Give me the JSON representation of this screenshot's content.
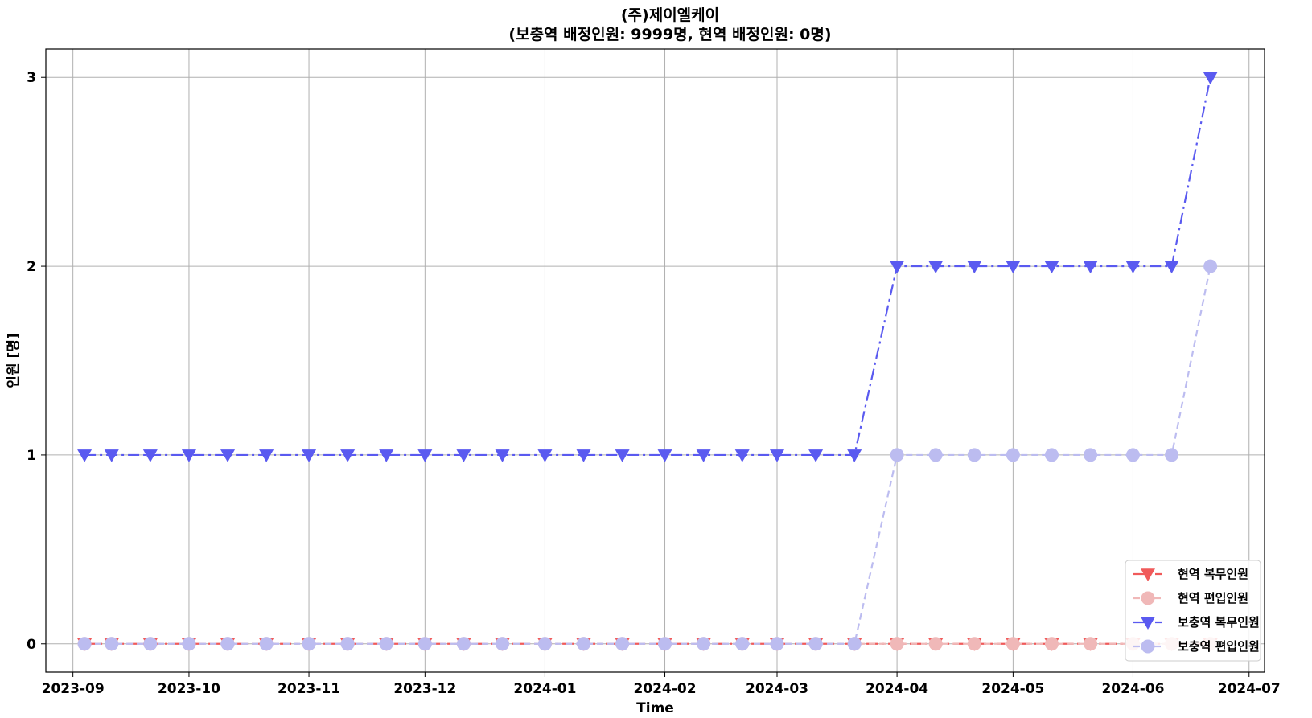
{
  "chart_data": {
    "type": "line",
    "title": "(주)제이엘케이",
    "subtitle": "(보충역  배정인원:  9999명,  현역  배정인원:  0명)",
    "xlabel": "Time",
    "ylabel": "인원 [명]",
    "xlim": [
      "2023-08-25",
      "2024-07-05"
    ],
    "ylim": [
      -0.15,
      3.15
    ],
    "x_ticks": [
      "2023-09",
      "2023-10",
      "2023-11",
      "2023-12",
      "2024-01",
      "2024-02",
      "2024-03",
      "2024-04",
      "2024-05",
      "2024-06",
      "2024-07"
    ],
    "y_ticks": [
      0,
      1,
      2,
      3
    ],
    "grid": true,
    "legend_position": "bottom-right",
    "x": [
      "2023-09-04",
      "2023-09-11",
      "2023-09-21",
      "2023-10-01",
      "2023-10-11",
      "2023-10-21",
      "2023-11-01",
      "2023-11-11",
      "2023-11-21",
      "2023-12-01",
      "2023-12-11",
      "2023-12-21",
      "2024-01-01",
      "2024-01-11",
      "2024-01-21",
      "2024-02-01",
      "2024-02-11",
      "2024-02-21",
      "2024-03-01",
      "2024-03-11",
      "2024-03-21",
      "2024-04-01",
      "2024-04-11",
      "2024-04-21",
      "2024-05-01",
      "2024-05-11",
      "2024-05-21",
      "2024-06-01",
      "2024-06-11",
      "2024-06-21"
    ],
    "series": [
      {
        "name": "현역  복무인원",
        "color": "#f05a5a",
        "marker": "triangle-down",
        "line_style": "dash-dot",
        "values": [
          0,
          0,
          0,
          0,
          0,
          0,
          0,
          0,
          0,
          0,
          0,
          0,
          0,
          0,
          0,
          0,
          0,
          0,
          0,
          0,
          0,
          0,
          0,
          0,
          0,
          0,
          0,
          0,
          0,
          0
        ]
      },
      {
        "name": "현역  편입인원",
        "color": "#f0b8b8",
        "marker": "circle",
        "line_style": "dashed",
        "values": [
          0,
          0,
          0,
          0,
          0,
          0,
          0,
          0,
          0,
          0,
          0,
          0,
          0,
          0,
          0,
          0,
          0,
          0,
          0,
          0,
          0,
          0,
          0,
          0,
          0,
          0,
          0,
          0,
          0,
          0
        ]
      },
      {
        "name": "보충역  복무인원",
        "color": "#5a5af0",
        "marker": "triangle-down",
        "line_style": "dash-dot",
        "values": [
          1,
          1,
          1,
          1,
          1,
          1,
          1,
          1,
          1,
          1,
          1,
          1,
          1,
          1,
          1,
          1,
          1,
          1,
          1,
          1,
          1,
          2,
          2,
          2,
          2,
          2,
          2,
          2,
          2,
          3
        ]
      },
      {
        "name": "보충역  편입인원",
        "color": "#bcbcf0",
        "marker": "circle",
        "line_style": "dashed",
        "values": [
          0,
          0,
          0,
          0,
          0,
          0,
          0,
          0,
          0,
          0,
          0,
          0,
          0,
          0,
          0,
          0,
          0,
          0,
          0,
          0,
          0,
          1,
          1,
          1,
          1,
          1,
          1,
          1,
          1,
          2
        ]
      }
    ]
  }
}
